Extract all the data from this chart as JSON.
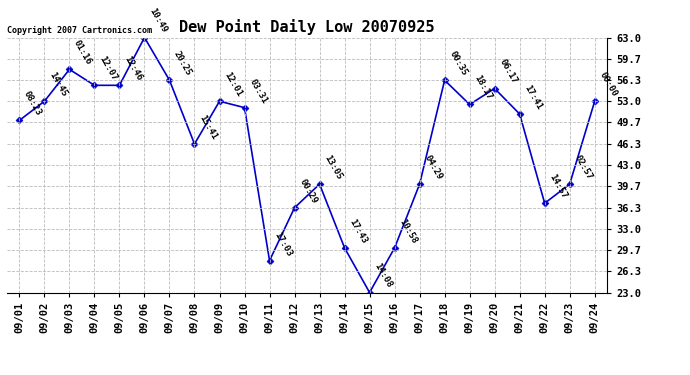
{
  "title": "Dew Point Daily Low 20070925",
  "copyright": "Copyright 2007 Cartronics.com",
  "background_color": "#ffffff",
  "line_color": "#0000cc",
  "marker_color": "#0000cc",
  "grid_color": "#bbbbbb",
  "x_labels": [
    "09/01",
    "09/02",
    "09/03",
    "09/04",
    "09/05",
    "09/06",
    "09/07",
    "09/08",
    "09/09",
    "09/10",
    "09/11",
    "09/12",
    "09/13",
    "09/14",
    "09/15",
    "09/16",
    "09/17",
    "09/18",
    "09/19",
    "09/20",
    "09/21",
    "09/22",
    "09/23",
    "09/24"
  ],
  "y_values": [
    50.0,
    53.0,
    58.0,
    55.5,
    55.5,
    63.0,
    56.3,
    46.3,
    53.0,
    52.0,
    28.0,
    36.3,
    40.0,
    30.0,
    23.0,
    30.0,
    40.0,
    56.3,
    52.5,
    55.0,
    51.0,
    37.0,
    40.0,
    53.0
  ],
  "annotations": [
    "08:23",
    "14:45",
    "01:16",
    "12:07",
    "12:46",
    "10:49",
    "20:25",
    "15:41",
    "12:01",
    "03:31",
    "17:03",
    "00:29",
    "13:05",
    "17:43",
    "14:08",
    "10:58",
    "04:29",
    "00:35",
    "18:17",
    "06:17",
    "17:41",
    "14:57",
    "02:57",
    "00:00"
  ],
  "ylim": [
    23.0,
    63.0
  ],
  "yticks": [
    23.0,
    26.3,
    29.7,
    33.0,
    36.3,
    39.7,
    43.0,
    46.3,
    49.7,
    53.0,
    56.3,
    59.7,
    63.0
  ],
  "title_fontsize": 11,
  "axis_fontsize": 7.5,
  "annotation_fontsize": 6.5,
  "copyright_fontsize": 6.0
}
